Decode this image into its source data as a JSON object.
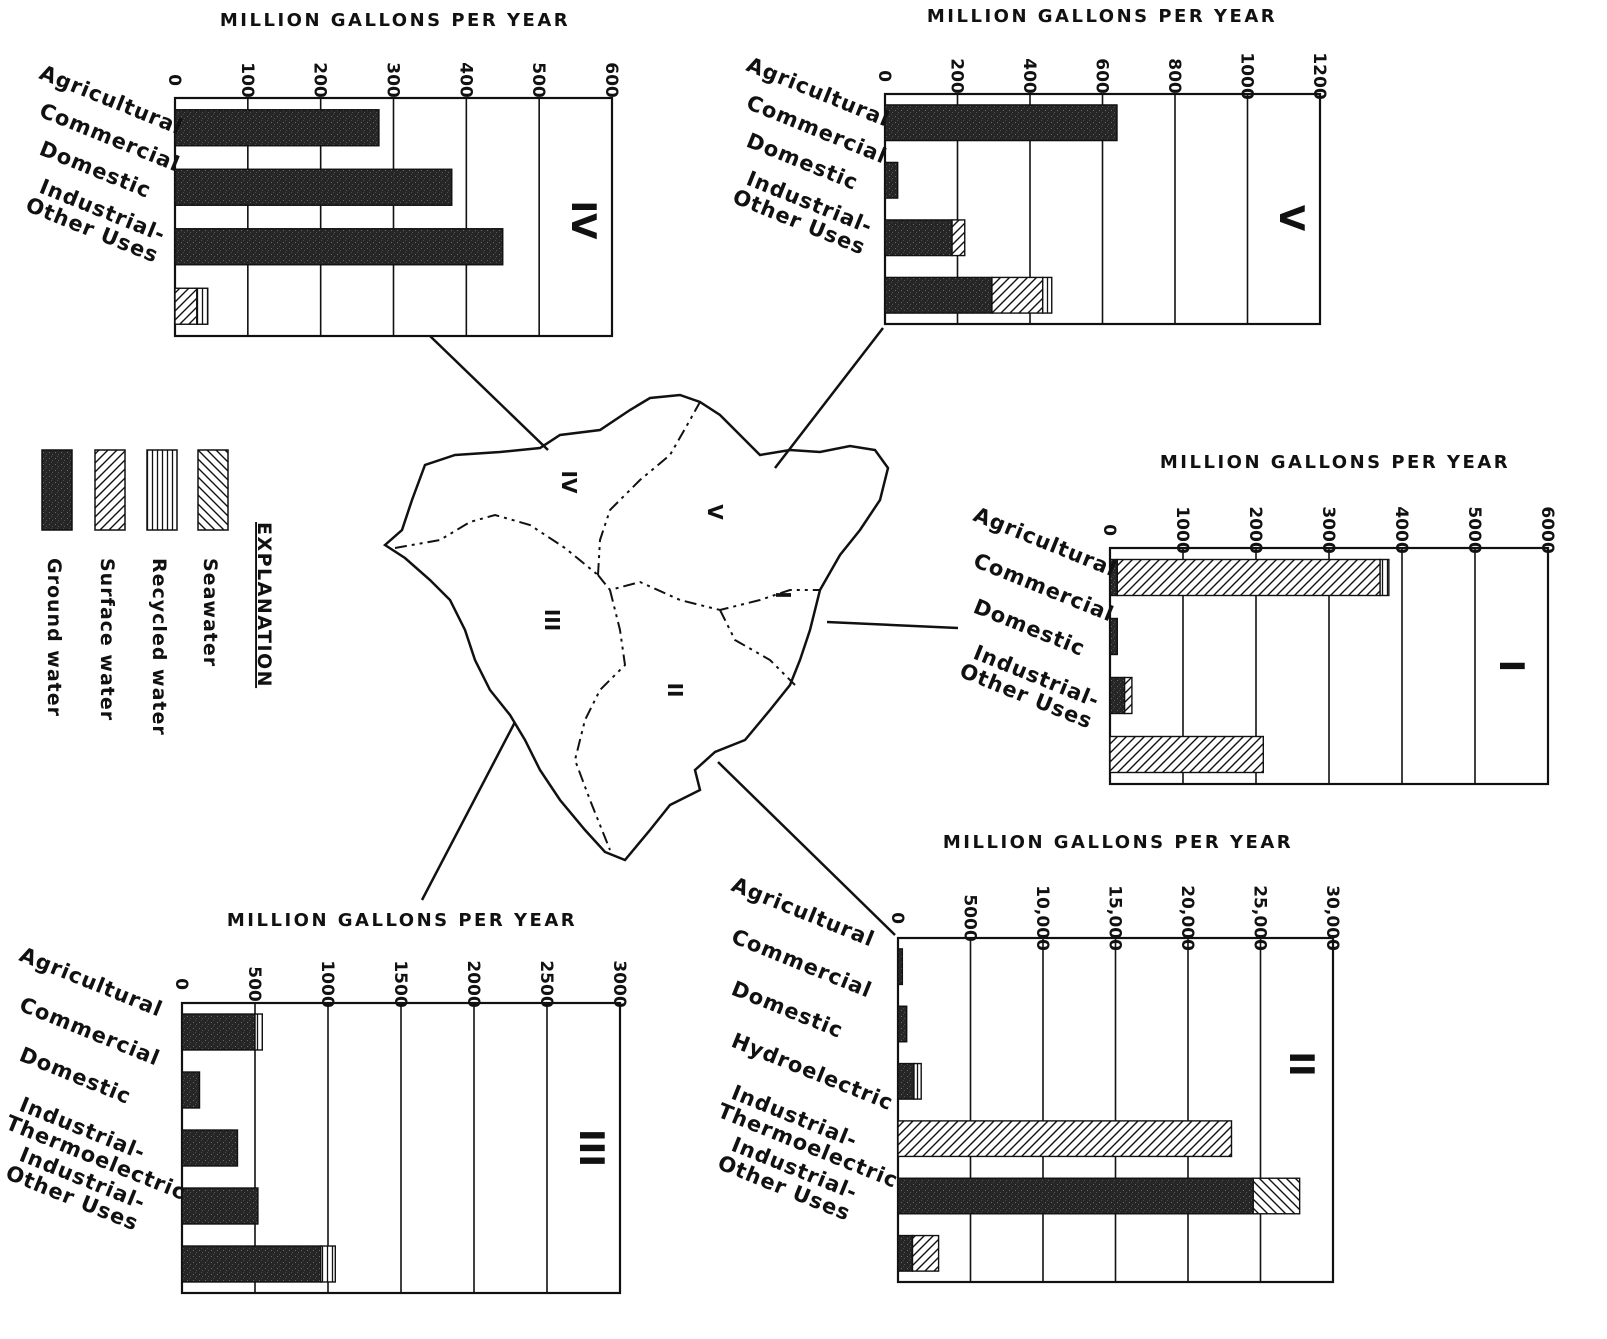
{
  "legend": {
    "title": "EXPLANATION",
    "items": [
      {
        "key": "ground",
        "label": "Ground water"
      },
      {
        "key": "surface",
        "label": "Surface water"
      },
      {
        "key": "recycled",
        "label": "Recycled water"
      },
      {
        "key": "seawater",
        "label": "Seawater"
      }
    ]
  },
  "map": {
    "region_labels": [
      "I",
      "II",
      "III",
      "IV",
      "V"
    ]
  },
  "chart_data": [
    {
      "id": "IV",
      "type": "bar",
      "title": "MILLION GALLONS PER YEAR",
      "region": "IV",
      "xlim": [
        0,
        600
      ],
      "ticks": [
        "0",
        "100",
        "200",
        "300",
        "400",
        "500",
        "600"
      ],
      "categories": [
        [
          "Agricultural"
        ],
        [
          "Commercial"
        ],
        [
          "Domestic"
        ],
        [
          "Industrial-",
          "Other Uses"
        ]
      ],
      "series": [
        {
          "key": "ground",
          "values": [
            280,
            380,
            450,
            0
          ]
        },
        {
          "key": "surface",
          "values": [
            0,
            0,
            0,
            30
          ]
        },
        {
          "key": "recycled",
          "values": [
            0,
            0,
            0,
            15
          ]
        },
        {
          "key": "seawater",
          "values": [
            0,
            0,
            0,
            0
          ]
        }
      ]
    },
    {
      "id": "V",
      "type": "bar",
      "title": "MILLION GALLONS PER YEAR",
      "region": "V",
      "xlim": [
        0,
        1200
      ],
      "ticks": [
        "0",
        "200",
        "400",
        "600",
        "800",
        "1000",
        "1200"
      ],
      "categories": [
        [
          "Agricultural"
        ],
        [
          "Commercial"
        ],
        [
          "Domestic"
        ],
        [
          "Industrial-",
          "Other Uses"
        ]
      ],
      "series": [
        {
          "key": "ground",
          "values": [
            640,
            35,
            185,
            295
          ]
        },
        {
          "key": "surface",
          "values": [
            0,
            0,
            35,
            140
          ]
        },
        {
          "key": "recycled",
          "values": [
            0,
            0,
            0,
            25
          ]
        },
        {
          "key": "seawater",
          "values": [
            0,
            0,
            0,
            0
          ]
        }
      ]
    },
    {
      "id": "I",
      "type": "bar",
      "title": "MILLION GALLONS PER YEAR",
      "region": "I",
      "xlim": [
        0,
        6000
      ],
      "ticks": [
        "0",
        "1000",
        "2000",
        "3000",
        "4000",
        "5000",
        "6000"
      ],
      "categories": [
        [
          "Agricultural"
        ],
        [
          "Commercial"
        ],
        [
          "Domestic"
        ],
        [
          "Industrial-",
          "Other Uses"
        ]
      ],
      "series": [
        {
          "key": "ground",
          "values": [
            100,
            100,
            200,
            0
          ]
        },
        {
          "key": "surface",
          "values": [
            3600,
            0,
            100,
            2100
          ]
        },
        {
          "key": "recycled",
          "values": [
            120,
            0,
            0,
            0
          ]
        },
        {
          "key": "seawater",
          "values": [
            0,
            0,
            0,
            0
          ]
        }
      ]
    },
    {
      "id": "III",
      "type": "bar",
      "title": "MILLION GALLONS PER YEAR",
      "region": "III",
      "xlim": [
        0,
        3000
      ],
      "ticks": [
        "0",
        "500",
        "1000",
        "1500",
        "2000",
        "2500",
        "3000"
      ],
      "categories": [
        [
          "Agricultural"
        ],
        [
          "Commercial"
        ],
        [
          "Domestic"
        ],
        [
          "Industrial-",
          "Thermoelectric"
        ],
        [
          "Industrial-",
          "Other Uses"
        ]
      ],
      "series": [
        {
          "key": "ground",
          "values": [
            500,
            120,
            380,
            520,
            950
          ]
        },
        {
          "key": "surface",
          "values": [
            0,
            0,
            0,
            0,
            0
          ]
        },
        {
          "key": "recycled",
          "values": [
            50,
            0,
            0,
            0,
            100
          ]
        },
        {
          "key": "seawater",
          "values": [
            0,
            0,
            0,
            0,
            0
          ]
        }
      ]
    },
    {
      "id": "II",
      "type": "bar",
      "title": "MILLION GALLONS PER YEAR",
      "region": "II",
      "xlim": [
        0,
        30000
      ],
      "ticks": [
        "0",
        "5000",
        "10,000",
        "15,000",
        "20,000",
        "25,000",
        "30,000"
      ],
      "categories": [
        [
          "Agricultural"
        ],
        [
          "Commercial"
        ],
        [
          "Domestic"
        ],
        [
          "Hydroelectric"
        ],
        [
          "Industrial-",
          "Thermoelectric"
        ],
        [
          "Industrial-",
          "Other Uses"
        ]
      ],
      "series": [
        {
          "key": "ground",
          "values": [
            300,
            600,
            1100,
            0,
            24500,
            1000
          ]
        },
        {
          "key": "surface",
          "values": [
            0,
            0,
            0,
            23000,
            0,
            1800
          ]
        },
        {
          "key": "recycled",
          "values": [
            0,
            0,
            500,
            0,
            0,
            0
          ]
        },
        {
          "key": "seawater",
          "values": [
            0,
            0,
            0,
            0,
            3200,
            0
          ]
        }
      ]
    }
  ]
}
